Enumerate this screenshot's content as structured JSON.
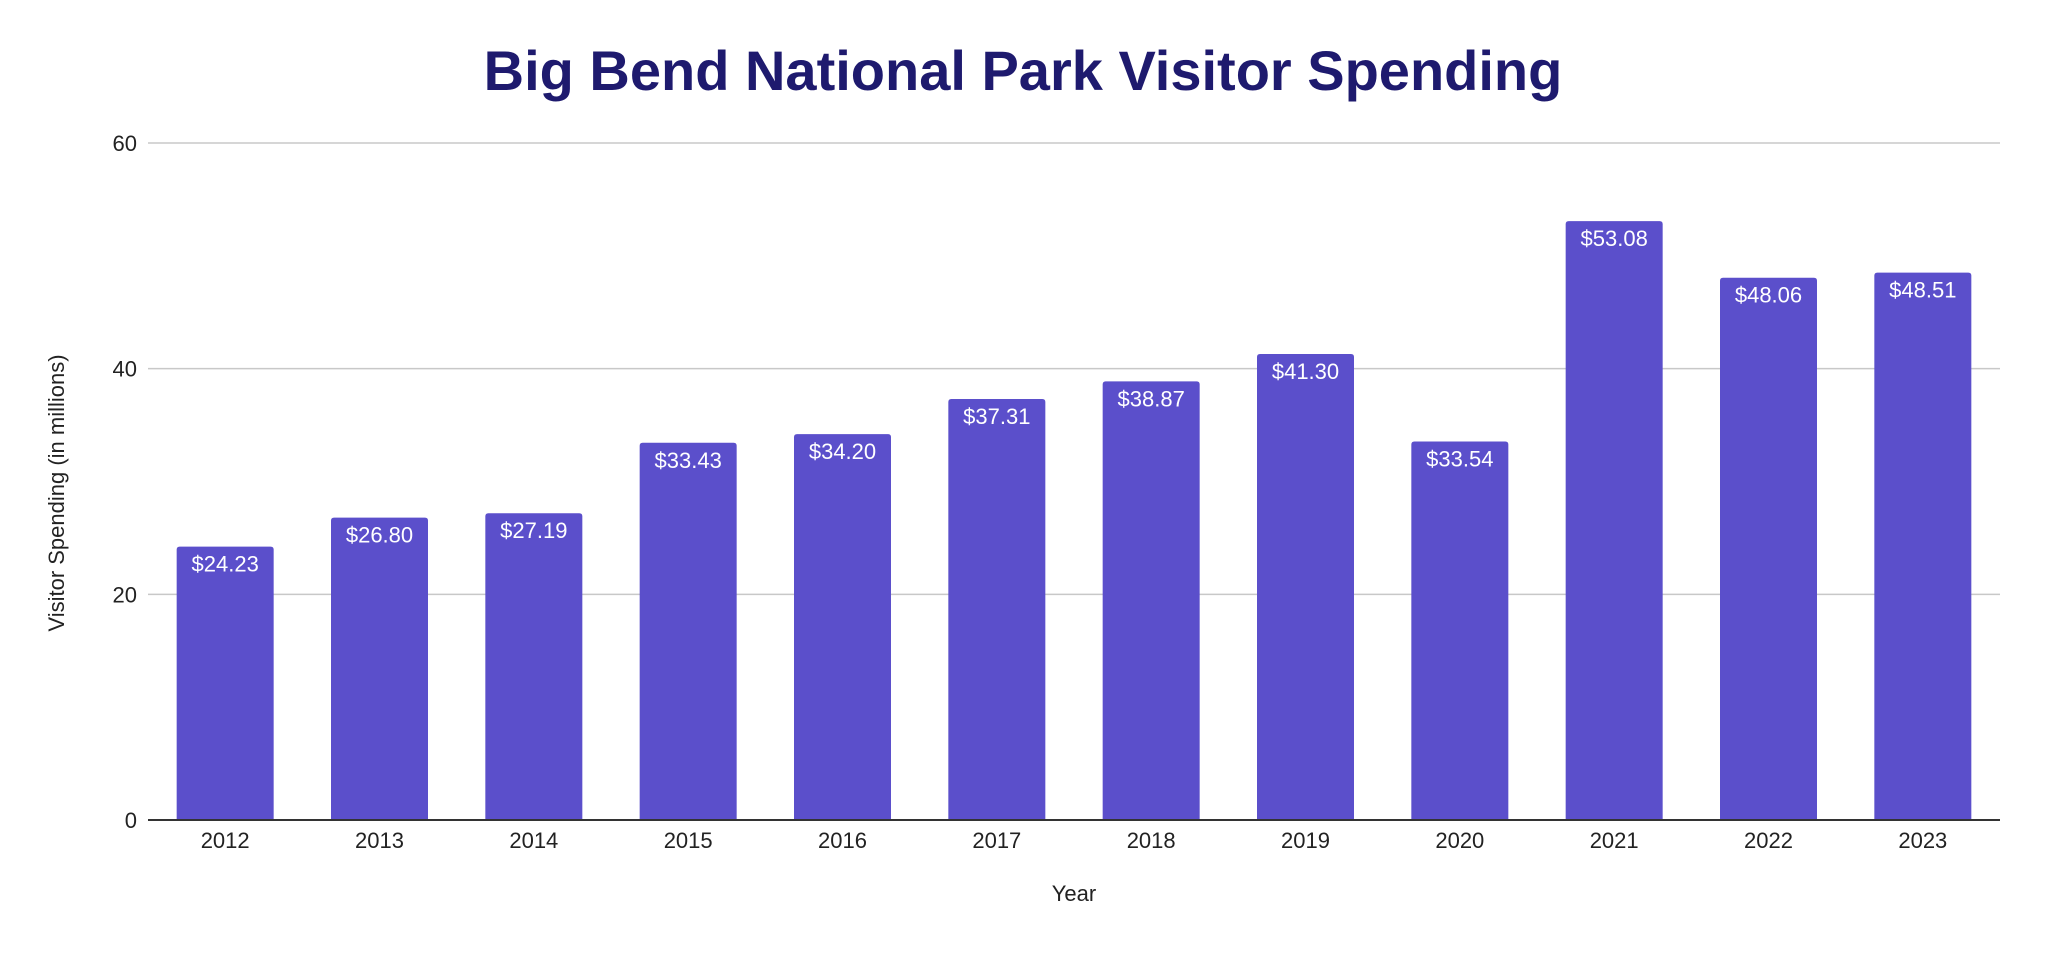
{
  "chart_data": {
    "type": "bar",
    "title": "Big Bend National Park Visitor Spending",
    "xlabel": "Year",
    "ylabel": "Visitor Spending (in millions)",
    "categories": [
      "2012",
      "2013",
      "2014",
      "2015",
      "2016",
      "2017",
      "2018",
      "2019",
      "2020",
      "2021",
      "2022",
      "2023"
    ],
    "values": [
      24.23,
      26.8,
      27.19,
      33.43,
      34.2,
      37.31,
      38.87,
      41.3,
      33.54,
      53.08,
      48.06,
      48.51
    ],
    "data_labels": [
      "$24.23",
      "$26.80",
      "$27.19",
      "$33.43",
      "$34.20",
      "$37.31",
      "$38.87",
      "$41.30",
      "$33.54",
      "$53.08",
      "$48.06",
      "$48.51"
    ],
    "ylim": [
      0,
      60
    ],
    "yticks": [
      0,
      20,
      40,
      60
    ],
    "grid": true,
    "legend": "none",
    "colors": {
      "bar": "#5b4fcb",
      "title": "#1e1a6e"
    }
  }
}
